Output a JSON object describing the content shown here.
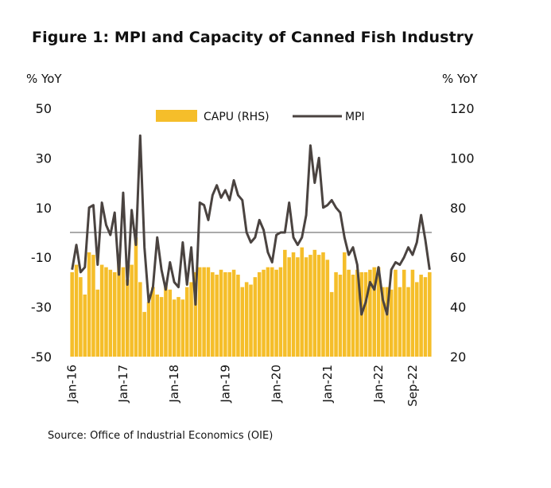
{
  "title": "Figure 1: MPI and Capacity of Canned Fish Industry",
  "left_unit": "% YoY",
  "right_unit": "% YoY",
  "source": "Source: Office of Industrial Economics (OIE)",
  "colors": {
    "bar": "#F5BE2A",
    "line": "#4A4340",
    "zero_line": "#555555"
  },
  "chart_data": {
    "type": "bar+line",
    "x_tick_labels": [
      "Jan-16",
      "Jan-17",
      "Jan-18",
      "Jan-19",
      "Jan-20",
      "Jan-21",
      "Jan-22",
      "Sep-22"
    ],
    "x_tick_index": [
      0,
      12,
      24,
      36,
      48,
      60,
      72,
      80
    ],
    "left_axis": {
      "ticks": [
        50,
        30,
        10,
        -10,
        -30,
        -50
      ],
      "ylim": [
        -50,
        50
      ]
    },
    "right_axis": {
      "ticks": [
        120,
        100,
        80,
        60,
        40,
        20
      ],
      "ylim": [
        20,
        120
      ]
    },
    "legend": [
      "CAPU (RHS)",
      "MPI"
    ],
    "series": [
      {
        "name": "CAPU (RHS)",
        "type": "bar",
        "axis": "right",
        "values": [
          54,
          57,
          52,
          45,
          62,
          61,
          47,
          57,
          56,
          55,
          54,
          61,
          56,
          51,
          57,
          68,
          50,
          38,
          42,
          48,
          45,
          44,
          49,
          47,
          43,
          44,
          43,
          48,
          50,
          54,
          56,
          56,
          56,
          54,
          53,
          55,
          54,
          54,
          55,
          53,
          48,
          50,
          49,
          52,
          54,
          55,
          56,
          56,
          55,
          56,
          63,
          60,
          62,
          60,
          64,
          60,
          61,
          63,
          61,
          62,
          59,
          46,
          54,
          53,
          62,
          55,
          53,
          55,
          54,
          54,
          55,
          56,
          56,
          48,
          48,
          47,
          55,
          48,
          55,
          48,
          55,
          50,
          53,
          52,
          54
        ]
      },
      {
        "name": "MPI",
        "type": "line",
        "axis": "left",
        "values": [
          -15,
          -5,
          -16,
          -14,
          10,
          11,
          -13,
          12,
          3,
          -1,
          8,
          -17,
          16,
          -21,
          9,
          -5,
          39,
          -6,
          -28,
          -22,
          -2,
          -15,
          -23,
          -12,
          -20,
          -22,
          -4,
          -21,
          -6,
          -29,
          12,
          11,
          5,
          15,
          19,
          14,
          17,
          13,
          21,
          15,
          13,
          0,
          -4,
          -2,
          5,
          1,
          -8,
          -12,
          -1,
          0,
          0,
          12,
          -2,
          -5,
          -2,
          7,
          35,
          20,
          30,
          10,
          11,
          13,
          10,
          8,
          -2,
          -9,
          -6,
          -13,
          -33,
          -28,
          -20,
          -23,
          -14,
          -27,
          -33,
          -15,
          -12,
          -13,
          -10,
          -6,
          -9,
          -4,
          7,
          -3,
          -15
        ]
      }
    ]
  }
}
